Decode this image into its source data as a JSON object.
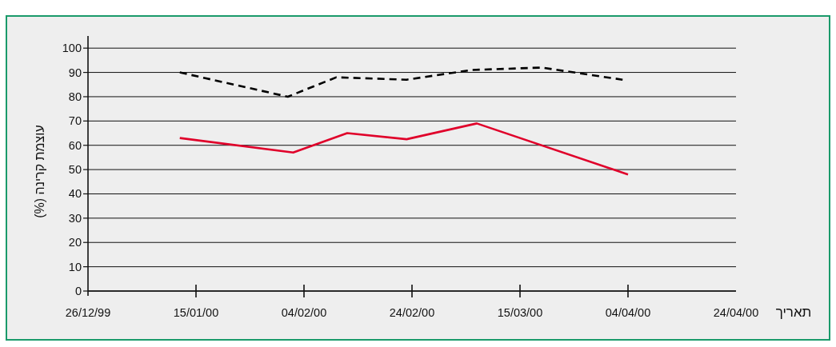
{
  "chart_data": {
    "type": "line",
    "xlabel": "תאריך",
    "ylabel": "עוצמת קרינה (%)",
    "xlim": [
      "1999-12-26",
      "2000-04-24"
    ],
    "xticks": [
      {
        "value": "1999-12-26",
        "label": "26/12/99"
      },
      {
        "value": "2000-01-15",
        "label": "15/01/00"
      },
      {
        "value": "2000-02-04",
        "label": "04/02/00"
      },
      {
        "value": "2000-02-24",
        "label": "24/02/00"
      },
      {
        "value": "2000-03-15",
        "label": "15/03/00"
      },
      {
        "value": "2000-04-04",
        "label": "04/04/00"
      },
      {
        "value": "2000-04-24",
        "label": "24/04/00"
      }
    ],
    "ylim": [
      0,
      105
    ],
    "yticks": [
      0,
      10,
      20,
      30,
      40,
      50,
      60,
      70,
      80,
      90,
      100
    ],
    "grid": "y",
    "series": [
      {
        "color": "#000000",
        "line_style": "dashed",
        "x": [
          "2000-01-12",
          "2000-02-01",
          "2000-02-10",
          "2000-02-23",
          "2000-03-06",
          "2000-03-19",
          "2000-04-03"
        ],
        "values": [
          90,
          80,
          88,
          87,
          91,
          92,
          87
        ]
      },
      {
        "color": "#e0002a",
        "line_style": "solid",
        "x": [
          "2000-01-12",
          "2000-02-02",
          "2000-02-12",
          "2000-02-23",
          "2000-03-07",
          "2000-04-04"
        ],
        "values": [
          63,
          57,
          65,
          62.5,
          69,
          48
        ]
      }
    ]
  }
}
